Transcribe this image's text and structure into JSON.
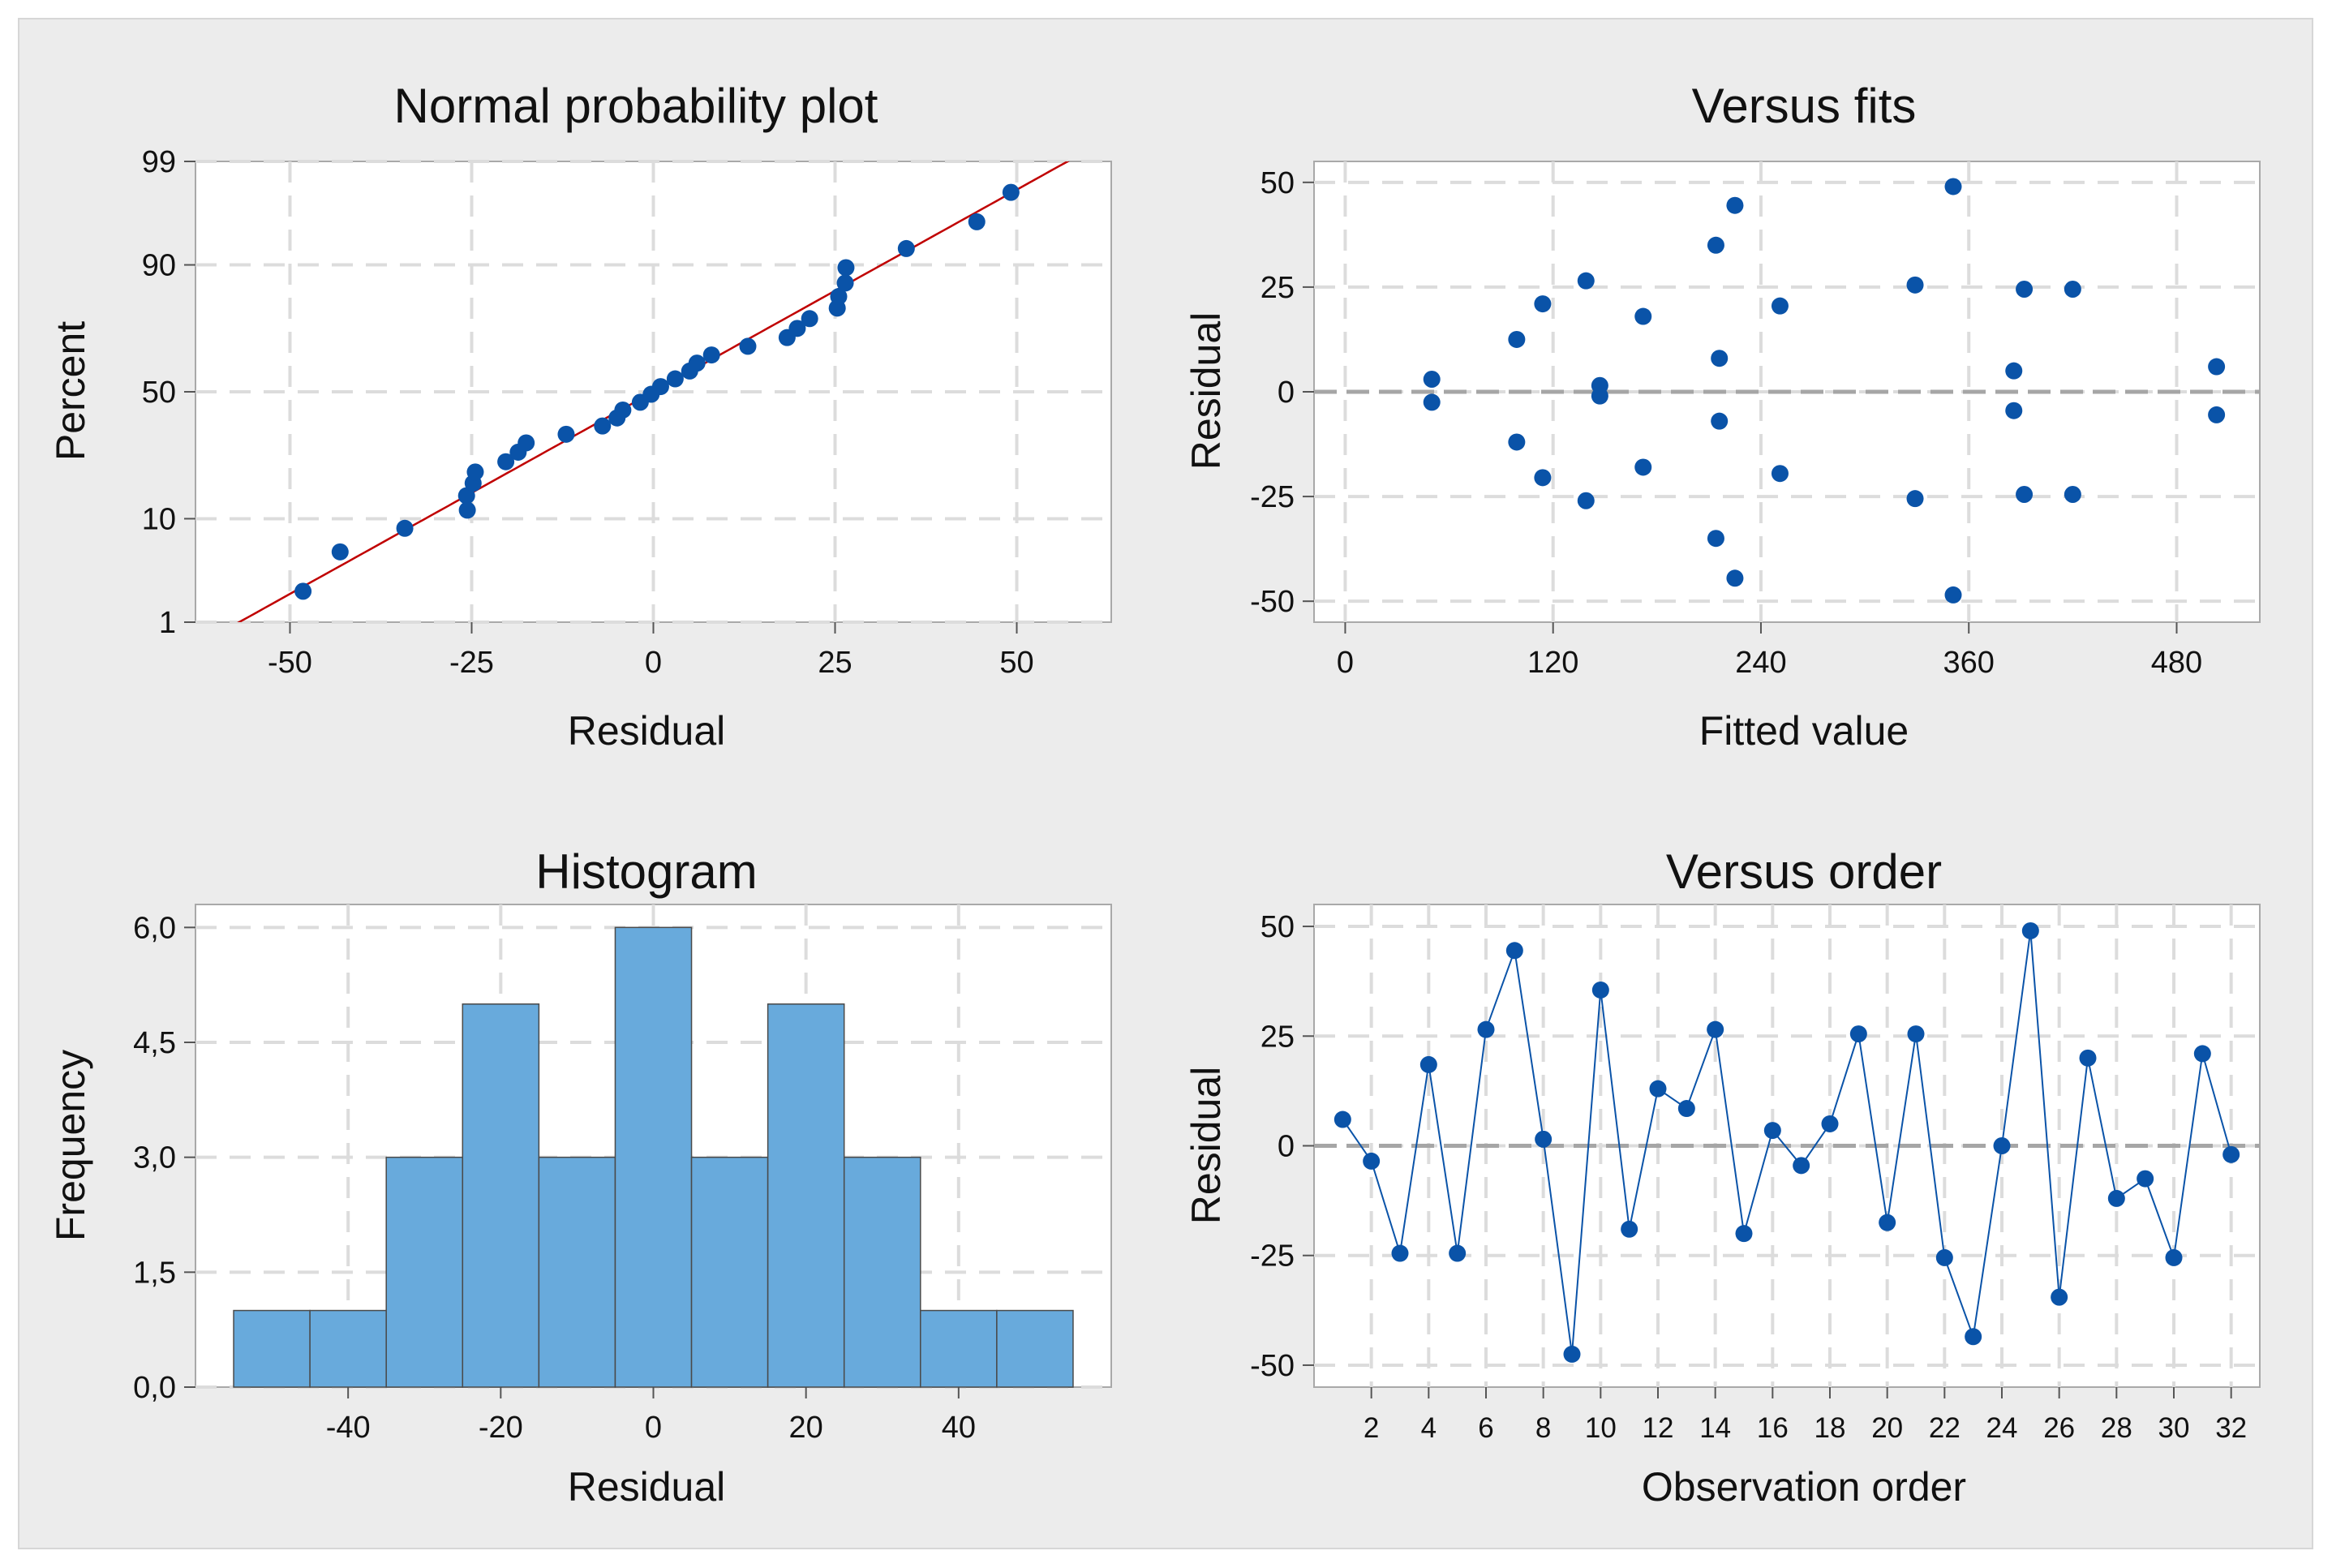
{
  "chart_data": [
    {
      "id": "npp",
      "type": "scatter",
      "title": "Normal probability plot",
      "xlabel": "Residual",
      "ylabel": "Percent",
      "xlim": [
        -63,
        63
      ],
      "xticks": [
        -50,
        -25,
        0,
        25,
        50
      ],
      "xtick_labels": [
        "-50",
        "-25",
        "0",
        "25",
        "50"
      ],
      "ylim": [
        1,
        99
      ],
      "yticks": [
        1,
        10,
        50,
        90,
        99
      ],
      "ytick_labels": [
        "1",
        "10",
        "50",
        "90",
        "99"
      ],
      "yscale": "normal-probability",
      "grid": true,
      "fit_line": {
        "mean": 0,
        "sd": 24.5,
        "color": "#c00000"
      },
      "points": [
        {
          "x": -48.2,
          "y": 2.2
        },
        {
          "x": -43.1,
          "y": 5.3
        },
        {
          "x": -34.2,
          "y": 8.4
        },
        {
          "x": -25.6,
          "y": 11.6
        },
        {
          "x": -25.7,
          "y": 14.7
        },
        {
          "x": -24.8,
          "y": 17.8
        },
        {
          "x": -24.5,
          "y": 20.9
        },
        {
          "x": -20.3,
          "y": 24.0
        },
        {
          "x": -18.6,
          "y": 27.1
        },
        {
          "x": -17.5,
          "y": 30.3
        },
        {
          "x": -12.0,
          "y": 33.4
        },
        {
          "x": -7.0,
          "y": 36.5
        },
        {
          "x": -5.0,
          "y": 39.6
        },
        {
          "x": -4.2,
          "y": 42.7
        },
        {
          "x": -1.8,
          "y": 45.8
        },
        {
          "x": -0.3,
          "y": 49.0
        },
        {
          "x": 1.0,
          "y": 52.1
        },
        {
          "x": 3.0,
          "y": 55.2
        },
        {
          "x": 5.0,
          "y": 58.3
        },
        {
          "x": 6.0,
          "y": 61.4
        },
        {
          "x": 8.0,
          "y": 64.5
        },
        {
          "x": 13.0,
          "y": 67.7
        },
        {
          "x": 18.4,
          "y": 70.8
        },
        {
          "x": 19.8,
          "y": 73.9
        },
        {
          "x": 21.5,
          "y": 77.0
        },
        {
          "x": 25.3,
          "y": 80.1
        },
        {
          "x": 25.5,
          "y": 83.2
        },
        {
          "x": 26.4,
          "y": 86.4
        },
        {
          "x": 26.5,
          "y": 89.5
        },
        {
          "x": 34.8,
          "y": 92.6
        },
        {
          "x": 44.5,
          "y": 95.7
        },
        {
          "x": 49.2,
          "y": 97.8
        }
      ],
      "marker_color": "#0a53a8"
    },
    {
      "id": "fits",
      "type": "scatter",
      "title": "Versus fits",
      "xlabel": "Fitted value",
      "ylabel": "Residual",
      "xlim": [
        -18,
        528
      ],
      "xticks": [
        0,
        120,
        240,
        360,
        480
      ],
      "xtick_labels": [
        "0",
        "120",
        "240",
        "360",
        "480"
      ],
      "ylim": [
        -55,
        55
      ],
      "yticks": [
        50,
        25,
        0,
        -25,
        -50
      ],
      "ytick_labels": [
        "50",
        "25",
        "0",
        "-25",
        "-50"
      ],
      "grid": true,
      "reference_line": 0,
      "points": [
        {
          "x": 50,
          "y": 3
        },
        {
          "x": 50,
          "y": -2.5
        },
        {
          "x": 99,
          "y": 12.5
        },
        {
          "x": 99,
          "y": -12
        },
        {
          "x": 114,
          "y": 21
        },
        {
          "x": 114,
          "y": -20.5
        },
        {
          "x": 139,
          "y": 26.5
        },
        {
          "x": 139,
          "y": -26
        },
        {
          "x": 147,
          "y": 1.5
        },
        {
          "x": 147,
          "y": -1
        },
        {
          "x": 172,
          "y": 18
        },
        {
          "x": 172,
          "y": -18
        },
        {
          "x": 214,
          "y": 35
        },
        {
          "x": 214,
          "y": -35
        },
        {
          "x": 216,
          "y": 8
        },
        {
          "x": 216,
          "y": -7
        },
        {
          "x": 225,
          "y": 44.5
        },
        {
          "x": 225,
          "y": -44.5
        },
        {
          "x": 251,
          "y": 20.5
        },
        {
          "x": 251,
          "y": -19.5
        },
        {
          "x": 329,
          "y": 25.5
        },
        {
          "x": 329,
          "y": -25.5
        },
        {
          "x": 351,
          "y": 49
        },
        {
          "x": 351,
          "y": -48.5
        },
        {
          "x": 386,
          "y": 5
        },
        {
          "x": 386,
          "y": -4.5
        },
        {
          "x": 392,
          "y": 24.5
        },
        {
          "x": 392,
          "y": -24.5
        },
        {
          "x": 420,
          "y": 24.5
        },
        {
          "x": 420,
          "y": -24.5
        },
        {
          "x": 503,
          "y": 6
        },
        {
          "x": 503,
          "y": -5.5
        }
      ],
      "marker_color": "#0a53a8"
    },
    {
      "id": "hist",
      "type": "bar",
      "title": "Histogram",
      "xlabel": "Residual",
      "ylabel": "Frequency",
      "xlim": [
        -60,
        60
      ],
      "xticks": [
        -40,
        -20,
        0,
        20,
        40
      ],
      "xtick_labels": [
        "-40",
        "-20",
        "0",
        "20",
        "40"
      ],
      "ylim": [
        0,
        6.3
      ],
      "yticks": [
        0,
        1.5,
        3,
        4.5,
        6
      ],
      "ytick_labels": [
        "0,0",
        "1,5",
        "3,0",
        "4,5",
        "6,0"
      ],
      "grid": true,
      "bin_edges": [
        -55,
        -45,
        -35,
        -25,
        -15,
        -5,
        5,
        15,
        25,
        35,
        45,
        55
      ],
      "values": [
        1,
        1,
        3,
        5,
        3,
        6,
        3,
        5,
        3,
        1,
        1
      ],
      "bar_color": "#68aadc"
    },
    {
      "id": "order",
      "type": "line",
      "title": "Versus order",
      "xlabel": "Observation order",
      "ylabel": "Residual",
      "xlim": [
        0,
        33
      ],
      "xticks": [
        2,
        4,
        6,
        8,
        10,
        12,
        14,
        16,
        18,
        20,
        22,
        24,
        26,
        28,
        30,
        32
      ],
      "xtick_labels": [
        "2",
        "4",
        "6",
        "8",
        "10",
        "12",
        "14",
        "16",
        "18",
        "20",
        "22",
        "24",
        "26",
        "28",
        "30",
        "32"
      ],
      "ylim": [
        -55,
        55
      ],
      "yticks": [
        50,
        25,
        0,
        -25,
        -50
      ],
      "ytick_labels": [
        "50",
        "25",
        "0",
        "-25",
        "-50"
      ],
      "grid": true,
      "reference_line": 0,
      "x": [
        1,
        2,
        3,
        4,
        5,
        6,
        7,
        8,
        9,
        10,
        11,
        12,
        13,
        14,
        15,
        16,
        17,
        18,
        19,
        20,
        21,
        22,
        23,
        24,
        25,
        26,
        27,
        28,
        29,
        30,
        31,
        32
      ],
      "values": [
        6,
        -3.5,
        -24.5,
        18.5,
        -24.5,
        26.5,
        44.5,
        1.5,
        -47.5,
        35.5,
        -19,
        13,
        8.5,
        26.5,
        -20,
        3.5,
        -4.5,
        5,
        25.5,
        -17.5,
        25.5,
        -25.5,
        -43.5,
        0,
        49,
        -34.5,
        20,
        -12,
        -7.5,
        -25.5,
        21,
        -2
      ],
      "marker_color": "#0a53a8"
    }
  ]
}
